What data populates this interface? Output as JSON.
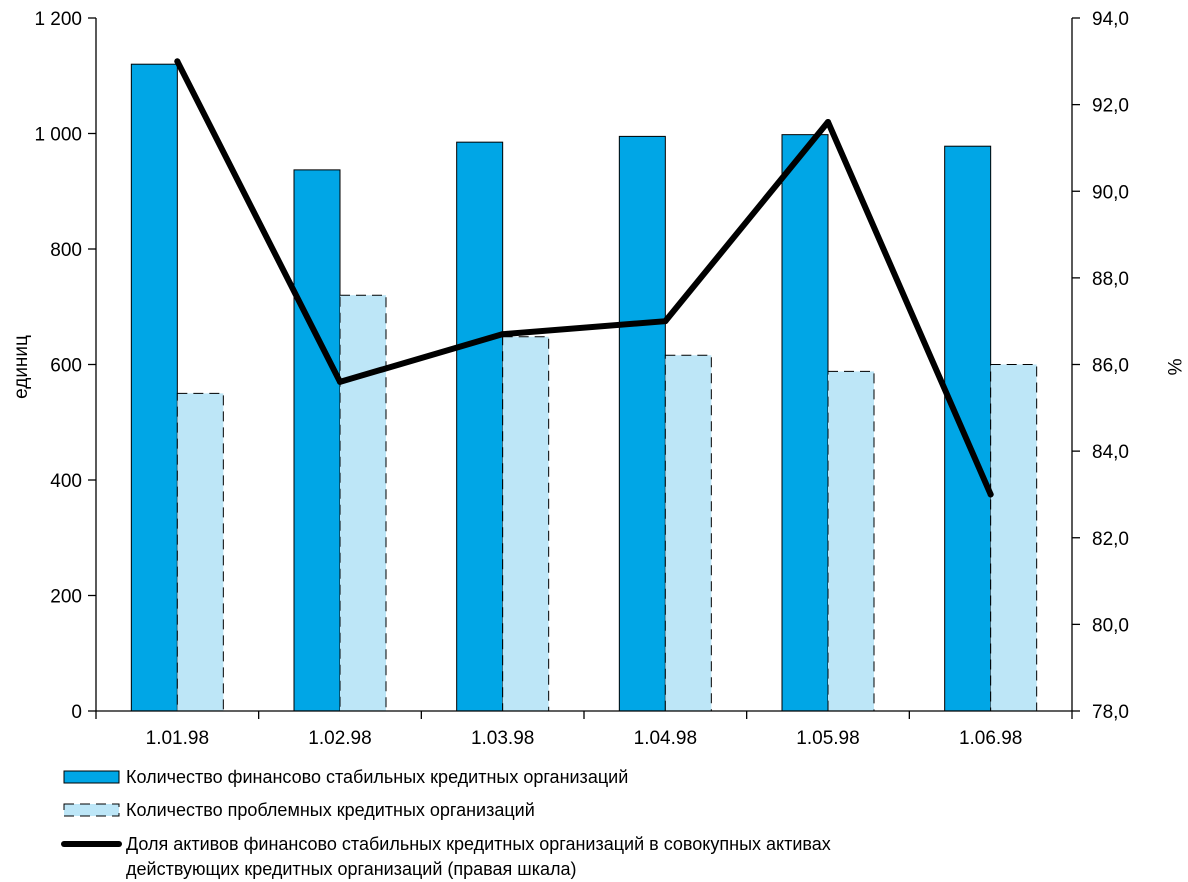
{
  "chart_data": {
    "type": "bar",
    "title": "",
    "categories": [
      "1.01.98",
      "1.02.98",
      "1.03.98",
      "1.04.98",
      "1.05.98",
      "1.06.98"
    ],
    "ylabel": "единиц",
    "y2label": "%",
    "ylim": [
      0,
      1200
    ],
    "y2lim": [
      78.0,
      94.0
    ],
    "yticks": [
      "0",
      "200",
      "400",
      "600",
      "800",
      "1 000",
      "1 200"
    ],
    "y2ticks": [
      "78,0",
      "80,0",
      "82,0",
      "84,0",
      "86,0",
      "88,0",
      "90,0",
      "92,0",
      "94,0"
    ],
    "grid": false,
    "legend_position": "bottom",
    "series": [
      {
        "name": "Количество финансово стабильных кредитных организаций",
        "kind": "bar",
        "axis": "left",
        "color": "#00a6e6",
        "values": [
          1120,
          937,
          985,
          995,
          998,
          978
        ]
      },
      {
        "name": "Количество проблемных кредитных организаций",
        "kind": "bar",
        "axis": "left",
        "color": "#bde6f7",
        "dashed_border": true,
        "values": [
          550,
          720,
          648,
          616,
          588,
          600
        ]
      },
      {
        "name": "Доля активов финансово стабильных кредитных организаций в совокупных активах",
        "name_line2": "действующих кредитных организаций (правая шкала)",
        "kind": "line",
        "axis": "right",
        "color": "#000000",
        "values": [
          93.0,
          85.6,
          86.7,
          87.0,
          91.6,
          83.0
        ]
      }
    ]
  }
}
